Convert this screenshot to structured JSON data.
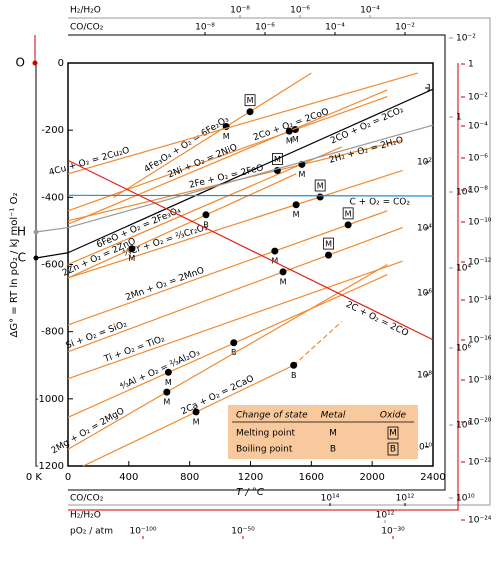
{
  "chart_data": {
    "type": "line",
    "x_label": "T / °C",
    "y_label": "ΔG° = RT ln pO₂ / kJ mol⁻¹ O₂",
    "xlim": [
      0,
      2400
    ],
    "ylim": [
      -1200,
      0
    ],
    "xticks": [
      0,
      400,
      800,
      1200,
      1600,
      2000,
      2400
    ],
    "yticks": [
      -1200,
      -1000,
      -800,
      -600,
      -400,
      -200,
      0
    ],
    "series": [
      {
        "name": "4Fe₃O₄ + O₂ = 6Fe₂O₃",
        "color": "#f28a30",
        "x": [
          300,
          1600
        ],
        "values": [
          -400,
          -30
        ],
        "markers": [
          {
            "label": "M",
            "x": 1040,
            "value": -189,
            "boxed": false
          },
          {
            "label": "M",
            "x": 1197,
            "value": -145,
            "boxed": true
          }
        ]
      },
      {
        "name": "4Cu + O₂ = 2Cu₂O",
        "color": "#f28a30",
        "x": [
          0,
          2300
        ],
        "values": [
          -330,
          -30
        ],
        "markers": []
      },
      {
        "name": "2Co + O₂ = 2CoO",
        "color": "#f28a30",
        "x": [
          0,
          2100
        ],
        "values": [
          -440,
          -100
        ],
        "markers": [
          {
            "label": "M",
            "x": 1495,
            "value": -198,
            "boxed": false
          }
        ]
      },
      {
        "name": "2Ni + O₂ = 2NiO",
        "color": "#f28a30",
        "x": [
          0,
          2100
        ],
        "values": [
          -480,
          -80
        ],
        "markers": [
          {
            "label": "M",
            "x": 1455,
            "value": -203,
            "boxed": false
          }
        ]
      },
      {
        "name": "6FeO + O₂ = 2Fe₃O₄",
        "color": "#f28a30",
        "x": [
          0,
          1800
        ],
        "values": [
          -600,
          -250
        ],
        "markers": []
      },
      {
        "name": "2Fe + O₂ = 2FeO",
        "color": "#f28a30",
        "x": [
          0,
          2200
        ],
        "values": [
          -470,
          -230
        ],
        "markers": [
          {
            "label": "M",
            "x": 1377,
            "value": -320,
            "boxed": true
          },
          {
            "label": "M",
            "x": 1538,
            "value": -302,
            "boxed": false
          }
        ]
      },
      {
        "name": "⁴⁄₃Cr + O₂ = ²⁄₃Cr₂O₃",
        "color": "#f28a30",
        "x": [
          0,
          2200
        ],
        "values": [
          -640,
          -320
        ],
        "markers": [
          {
            "label": "M",
            "x": 1500,
            "value": -422,
            "boxed": false
          },
          {
            "label": "M",
            "x": 1658,
            "value": -399,
            "boxed": true
          }
        ]
      },
      {
        "name": "2Mn + O₂ = 2MnO",
        "color": "#f28a30",
        "x": [
          0,
          2100
        ],
        "values": [
          -780,
          -440
        ],
        "markers": [
          {
            "label": "M",
            "x": 1360,
            "value": -560,
            "boxed": false
          },
          {
            "label": "M",
            "x": 1842,
            "value": -482,
            "boxed": true
          }
        ]
      },
      {
        "name": "2Zn + O₂ = 2ZnO",
        "color": "#f28a30",
        "x": [
          0,
          1500
        ],
        "values": [
          -640,
          -330
        ],
        "markers": [
          {
            "label": "M",
            "x": 420,
            "value": -553,
            "boxed": false
          },
          {
            "label": "B",
            "x": 907,
            "value": -452,
            "boxed": false
          }
        ]
      },
      {
        "name": "Si + O₂ = SiO₂",
        "color": "#f28a30",
        "x": [
          0,
          2200
        ],
        "values": [
          -860,
          -490
        ],
        "markers": [
          {
            "label": "M",
            "x": 1414,
            "value": -622,
            "boxed": false
          },
          {
            "label": "M",
            "x": 1713,
            "value": -572,
            "boxed": true
          }
        ]
      },
      {
        "name": "Ti + O₂ = TiO₂",
        "color": "#f28a30",
        "x": [
          0,
          2200
        ],
        "values": [
          -940,
          -590
        ],
        "markers": []
      },
      {
        "name": "⁴⁄₃Al + O₂ = ²⁄₃Al₂O₃",
        "color": "#f28a30",
        "x": [
          0,
          2100
        ],
        "values": [
          -1055,
          -630
        ],
        "markers": [
          {
            "label": "M",
            "x": 660,
            "value": -921,
            "boxed": false
          },
          {
            "label": "B",
            "x": 1090,
            "value": -833,
            "boxed": false
          }
        ]
      },
      {
        "name": "2Mg + O₂ = 2MgO",
        "color": "#f28a30",
        "x": [
          0,
          2100
        ],
        "values": [
          -1150,
          -600
        ],
        "markers": [
          {
            "label": "M",
            "x": 650,
            "value": -980,
            "boxed": false
          }
        ]
      },
      {
        "name": "2Ca + O₂ = 2CaO",
        "color": "#f28a30",
        "x": [
          100,
          1484,
          1800
        ],
        "values": [
          -1200,
          -900,
          -770
        ],
        "segments": [
          "solid",
          "dashed"
        ],
        "markers": [
          {
            "label": "M",
            "x": 842,
            "value": -1039,
            "boxed": false
          },
          {
            "label": "B",
            "x": 1484,
            "value": -900,
            "boxed": false
          }
        ]
      },
      {
        "name": "2CO + O₂ = 2CO₂",
        "color": "#000000",
        "x": [
          0,
          2400
        ],
        "values": [
          -565,
          -78
        ],
        "markers": [],
        "from": "c"
      },
      {
        "name": "2H₂ + O₂ = 2H₂O",
        "color": "#999999",
        "x": [
          0,
          2400
        ],
        "values": [
          -490,
          -185
        ],
        "markers": [],
        "from": "h"
      },
      {
        "name": "C + O₂ = CO₂",
        "color": "#1e90d8",
        "x": [
          0,
          2400
        ],
        "values": [
          -394,
          -396
        ],
        "markers": []
      },
      {
        "name": "2C + O₂ = 2CO",
        "color": "#e0201b",
        "x": [
          0,
          2400
        ],
        "values": [
          -290,
          -824
        ],
        "markers": []
      }
    ],
    "points": {
      "o": "O",
      "h": "H",
      "c": "C",
      "zero": "0 K"
    },
    "scales": {
      "top_h2": {
        "title": "H₂/H₂O",
        "ticks": [
          "10⁻⁸",
          "10⁻⁶",
          "10⁻⁴"
        ]
      },
      "top_co": {
        "title": "CO/CO₂",
        "ticks": [
          "10⁻⁸",
          "10⁻⁶",
          "10⁻⁴",
          "10⁻²"
        ]
      },
      "right_co": {
        "ticks": [
          "1",
          "10²",
          "10⁴",
          "10⁶",
          "10⁸",
          "10¹⁰"
        ]
      },
      "right_h2": {
        "ticks": [
          "10⁻²",
          "1",
          "10²",
          "10⁴",
          "10⁶",
          "10⁸",
          "10¹⁰"
        ]
      },
      "right_o2": {
        "ticks": [
          "1",
          "10⁻²",
          "10⁻⁴",
          "10⁻⁶",
          "10⁻⁸",
          "10⁻¹⁰",
          "10⁻¹²",
          "10⁻¹⁴",
          "10⁻¹⁶",
          "10⁻¹⁸",
          "10⁻²⁰",
          "10⁻²²",
          "10⁻²⁴"
        ]
      },
      "bottom_co": {
        "title": "CO/CO₂",
        "ticks": [
          "10¹⁴",
          "10¹²"
        ]
      },
      "bottom_h2": {
        "title": "H₂/H₂O",
        "ticks": [
          "10¹²"
        ]
      },
      "bottom_o2": {
        "title": "pO₂ / atm",
        "ticks": [
          "10⁻¹⁰⁰",
          "10⁻⁵⁰",
          "10⁻³⁰"
        ]
      }
    },
    "legend": {
      "header": [
        "Change of state",
        "Metal",
        "Oxide"
      ],
      "rows": [
        [
          "Melting point",
          "M",
          "M"
        ],
        [
          "Boiling point",
          "B",
          "B"
        ]
      ]
    }
  }
}
